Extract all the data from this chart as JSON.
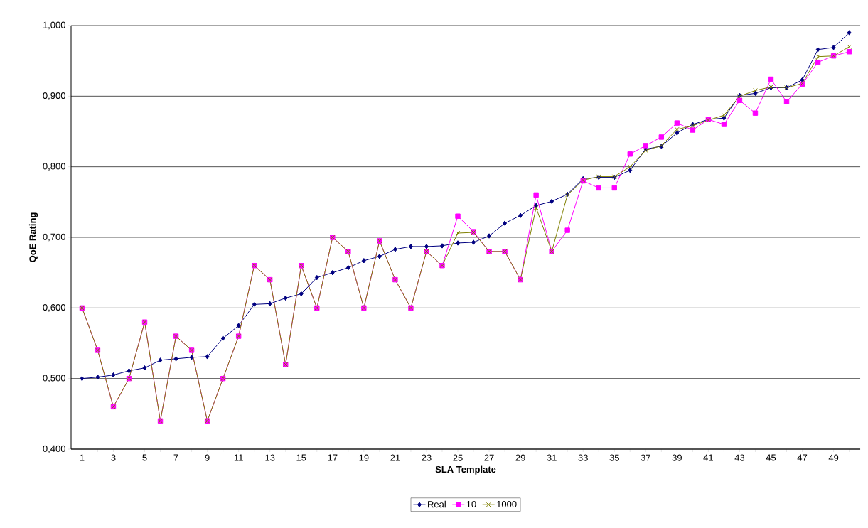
{
  "chart_data": {
    "type": "line",
    "xlabel": "SLA Template",
    "ylabel": "QoE Rating",
    "categories": [
      "1",
      null,
      "3",
      null,
      "5",
      null,
      "7",
      null,
      "9",
      null,
      "11",
      null,
      "13",
      null,
      "15",
      null,
      "17",
      null,
      "19",
      null,
      "21",
      null,
      "23",
      null,
      "25",
      null,
      "27",
      null,
      "29",
      null,
      "31",
      null,
      "33",
      null,
      "35",
      null,
      "37",
      null,
      "39",
      null,
      "41",
      null,
      "43",
      null,
      "45",
      null,
      "47",
      null,
      "49",
      null
    ],
    "series": [
      {
        "name": "Real",
        "color": "#000080",
        "marker": "diamond",
        "values": [
          0.5,
          0.502,
          0.505,
          0.511,
          0.515,
          0.526,
          0.528,
          0.53,
          0.531,
          0.557,
          0.575,
          0.605,
          0.606,
          0.614,
          0.62,
          0.643,
          0.65,
          0.657,
          0.667,
          0.673,
          0.683,
          0.687,
          0.687,
          0.688,
          0.692,
          0.693,
          0.702,
          0.72,
          0.731,
          0.745,
          0.751,
          0.761,
          0.783,
          0.785,
          0.785,
          0.795,
          0.825,
          0.829,
          0.848,
          0.86,
          0.867,
          0.869,
          0.901,
          0.904,
          0.912,
          0.912,
          0.923,
          0.966,
          0.969,
          0.99
        ]
      },
      {
        "name": "10",
        "color": "#ff00ff",
        "marker": "square",
        "values": [
          0.6,
          0.54,
          0.46,
          0.5,
          0.58,
          0.44,
          0.56,
          0.54,
          0.44,
          0.5,
          0.56,
          0.66,
          0.64,
          0.52,
          0.66,
          0.6,
          0.7,
          0.68,
          0.6,
          0.695,
          0.64,
          0.6,
          0.68,
          0.66,
          0.73,
          0.708,
          0.68,
          0.68,
          0.64,
          0.76,
          0.68,
          0.71,
          0.78,
          0.77,
          0.77,
          0.818,
          0.83,
          0.842,
          0.862,
          0.852,
          0.867,
          0.86,
          0.894,
          0.876,
          0.924,
          0.892,
          0.917,
          0.948,
          0.957,
          0.963
        ]
      },
      {
        "name": "1000",
        "color": "#808000",
        "marker": "cross",
        "values": [
          0.6,
          0.54,
          0.46,
          0.5,
          0.58,
          0.44,
          0.56,
          0.54,
          0.44,
          0.5,
          0.56,
          0.66,
          0.64,
          0.52,
          0.66,
          0.6,
          0.7,
          0.68,
          0.6,
          0.695,
          0.64,
          0.6,
          0.68,
          0.66,
          0.706,
          0.707,
          0.68,
          0.68,
          0.64,
          0.742,
          0.68,
          0.76,
          0.781,
          0.786,
          0.786,
          0.8,
          0.823,
          0.83,
          0.853,
          0.858,
          0.866,
          0.873,
          0.9,
          0.908,
          0.913,
          0.912,
          0.918,
          0.956,
          0.957,
          0.97
        ]
      }
    ],
    "ylim": [
      0.4,
      1.0
    ],
    "yticks": [
      {
        "value": 0.4,
        "label": "0,400"
      },
      {
        "value": 0.5,
        "label": "0,500"
      },
      {
        "value": 0.6,
        "label": "0,600"
      },
      {
        "value": 0.7,
        "label": "0,700"
      },
      {
        "value": 0.8,
        "label": "0,800"
      },
      {
        "value": 0.9,
        "label": "0,900"
      },
      {
        "value": 1.0,
        "label": "1,000"
      }
    ],
    "grid": "y",
    "legend": "bottom"
  }
}
